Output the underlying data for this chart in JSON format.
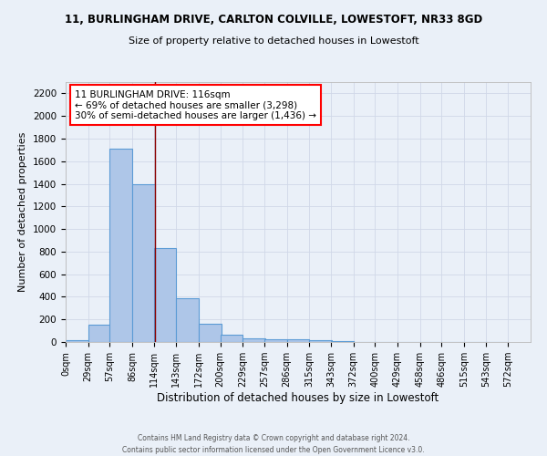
{
  "title_line1": "11, BURLINGHAM DRIVE, CARLTON COLVILLE, LOWESTOFT, NR33 8GD",
  "title_line2": "Size of property relative to detached houses in Lowestoft",
  "xlabel": "Distribution of detached houses by size in Lowestoft",
  "ylabel": "Number of detached properties",
  "footer_line1": "Contains HM Land Registry data © Crown copyright and database right 2024.",
  "footer_line2": "Contains public sector information licensed under the Open Government Licence v3.0.",
  "bin_labels": [
    "0sqm",
    "29sqm",
    "57sqm",
    "86sqm",
    "114sqm",
    "143sqm",
    "172sqm",
    "200sqm",
    "229sqm",
    "257sqm",
    "286sqm",
    "315sqm",
    "343sqm",
    "372sqm",
    "400sqm",
    "429sqm",
    "458sqm",
    "486sqm",
    "515sqm",
    "543sqm",
    "572sqm"
  ],
  "bar_values": [
    15,
    150,
    1710,
    1400,
    830,
    385,
    160,
    65,
    35,
    25,
    25,
    20,
    10,
    0,
    0,
    0,
    0,
    0,
    0,
    0
  ],
  "bar_color": "#aec6e8",
  "bar_edge_color": "#5b9bd5",
  "ylim": [
    0,
    2300
  ],
  "yticks": [
    0,
    200,
    400,
    600,
    800,
    1000,
    1200,
    1400,
    1600,
    1800,
    2000,
    2200
  ],
  "annotation_text": "11 BURLINGHAM DRIVE: 116sqm\n← 69% of detached houses are smaller (3,298)\n30% of semi-detached houses are larger (1,436) →",
  "annotation_box_color": "white",
  "annotation_box_edge_color": "red",
  "vline_color": "#8b0000",
  "grid_color": "#d0d8e8",
  "background_color": "#eaf0f8",
  "title_fontsize": 8.5,
  "subtitle_fontsize": 8,
  "xlabel_fontsize": 8.5,
  "ylabel_fontsize": 8,
  "tick_fontsize": 7,
  "annot_fontsize": 7.5,
  "footer_fontsize": 5.5
}
